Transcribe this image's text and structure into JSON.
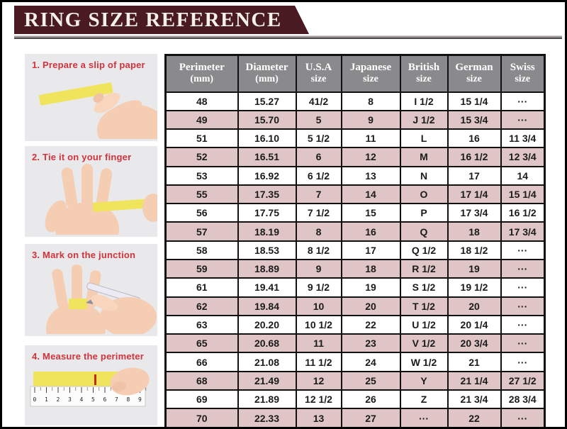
{
  "header": {
    "title": "RING SIZE REFERENCE"
  },
  "steps": [
    {
      "label": "1. Prepare a slip of paper"
    },
    {
      "label": "2. Tie it on your finger"
    },
    {
      "label": "3. Mark on the junction"
    },
    {
      "label": "4. Measure the perimeter"
    }
  ],
  "ruler_numbers": [
    "0",
    "1",
    "2",
    "3",
    "4",
    "5",
    "6",
    "7",
    "8",
    "9"
  ],
  "table": {
    "columns": [
      {
        "line1": "Perimeter",
        "line2": "(mm)"
      },
      {
        "line1": "Diameter",
        "line2": "(mm)"
      },
      {
        "line1": "U.S.A",
        "line2": "size"
      },
      {
        "line1": "Japanese",
        "line2": "size"
      },
      {
        "line1": "British",
        "line2": "size"
      },
      {
        "line1": "German",
        "line2": "size"
      },
      {
        "line1": "Swiss",
        "line2": "size"
      }
    ],
    "rows": [
      [
        "48",
        "15.27",
        "41/2",
        "8",
        "I 1/2",
        "15 1/4",
        "···"
      ],
      [
        "49",
        "15.70",
        "5",
        "9",
        "J 1/2",
        "15 3/4",
        "···"
      ],
      [
        "51",
        "16.10",
        "5 1/2",
        "11",
        "L",
        "16",
        "11 3/4"
      ],
      [
        "52",
        "16.51",
        "6",
        "12",
        "M",
        "16 1/2",
        "12 3/4"
      ],
      [
        "53",
        "16.92",
        "6 1/2",
        "13",
        "N",
        "17",
        "14"
      ],
      [
        "55",
        "17.35",
        "7",
        "14",
        "O",
        "17 1/4",
        "15 1/4"
      ],
      [
        "56",
        "17.75",
        "7 1/2",
        "15",
        "P",
        "17 3/4",
        "16 1/2"
      ],
      [
        "57",
        "18.19",
        "8",
        "16",
        "Q",
        "18",
        "17 3/4"
      ],
      [
        "58",
        "18.53",
        "8 1/2",
        "17",
        "Q 1/2",
        "18 1/2",
        "···"
      ],
      [
        "59",
        "18.89",
        "9",
        "18",
        "R 1/2",
        "19",
        "···"
      ],
      [
        "61",
        "19.41",
        "9 1/2",
        "19",
        "S 1/2",
        "19 1/2",
        "···"
      ],
      [
        "62",
        "19.84",
        "10",
        "20",
        "T 1/2",
        "20",
        "···"
      ],
      [
        "63",
        "20.20",
        "10 1/2",
        "22",
        "U 1/2",
        "20 1/4",
        "···"
      ],
      [
        "65",
        "20.68",
        "11",
        "23",
        "V 1/2",
        "20 3/4",
        "···"
      ],
      [
        "66",
        "21.08",
        "11 1/2",
        "24",
        "W 1/2",
        "21",
        "···"
      ],
      [
        "68",
        "21.49",
        "12",
        "25",
        "Y",
        "21 1/4",
        "27 1/2"
      ],
      [
        "69",
        "21.89",
        "12 1/2",
        "26",
        "Z",
        "21 3/4",
        "28 3/4"
      ],
      [
        "70",
        "22.33",
        "13",
        "27",
        "···",
        "22",
        "···"
      ]
    ]
  },
  "colors": {
    "banner_maroon": "#4a1a23",
    "divider_gray": "#a09a9a",
    "header_gray": "#8a8a8c",
    "row_pink": "#dfc5c6",
    "row_white": "#ffffff",
    "step_label_red": "#d2323c",
    "paper_yellow": "#f0e45c",
    "photo_background": "#e9e9ec",
    "table_border": "#111111"
  }
}
